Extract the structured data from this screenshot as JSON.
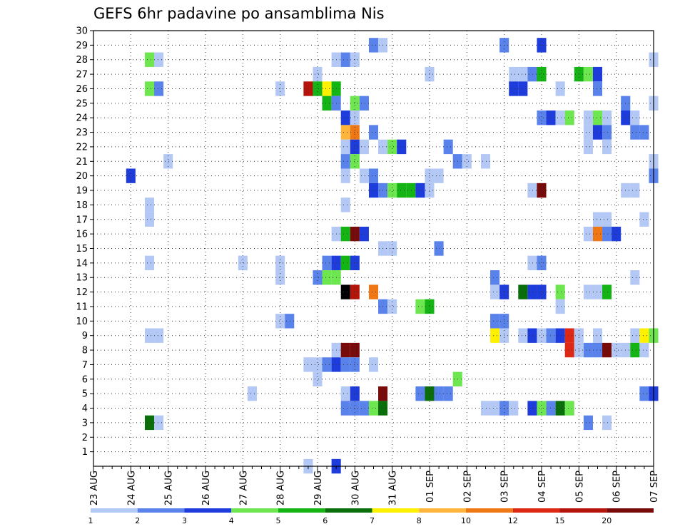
{
  "chart_data": {
    "type": "heatmap",
    "title": "GEFS 6hr padavine po ansamblima Nis",
    "xlabel": "",
    "ylabel": "",
    "x_ticks": [
      "23 AUG",
      "24 AUG",
      "25 AUG",
      "26 AUG",
      "27 AUG",
      "28 AUG",
      "29 AUG",
      "30 AUG",
      "31 AUG",
      "01 SEP",
      "02 SEP",
      "03 SEP",
      "04 SEP",
      "05 SEP",
      "06 SEP",
      "07 SEP"
    ],
    "y_ticks": [
      "1",
      "2",
      "3",
      "4",
      "5",
      "6",
      "7",
      "8",
      "9",
      "10",
      "11",
      "12",
      "13",
      "14",
      "15",
      "16",
      "17",
      "18",
      "19",
      "20",
      "21",
      "22",
      "23",
      "24",
      "25",
      "26",
      "27",
      "28",
      "29",
      "30"
    ],
    "xlim_steps": [
      0,
      60
    ],
    "ylim": [
      0,
      30
    ],
    "grid": true,
    "legend_placement": "bottom",
    "legend": {
      "labels": [
        "1",
        "2",
        "3",
        "4",
        "5",
        "6",
        "7",
        "8",
        "10",
        "12",
        "15",
        "20"
      ],
      "colors": [
        "#b4c8f5",
        "#5a82eb",
        "#1e3cdc",
        "#6ee650",
        "#14b414",
        "#0a6e0a",
        "#fff000",
        "#ffb43c",
        "#f07814",
        "#dc2814",
        "#b4140a",
        "#780a0a"
      ]
    },
    "cells": [
      {
        "member": 29,
        "step": 30,
        "cls": 2
      },
      {
        "member": 29,
        "step": 31,
        "cls": 1
      },
      {
        "member": 29,
        "step": 44,
        "cls": 2
      },
      {
        "member": 29,
        "step": 48,
        "cls": 3
      },
      {
        "member": 28,
        "step": 6,
        "cls": 4
      },
      {
        "member": 28,
        "step": 7,
        "cls": 1
      },
      {
        "member": 28,
        "step": 26,
        "cls": 1
      },
      {
        "member": 28,
        "step": 27,
        "cls": 2
      },
      {
        "member": 28,
        "step": 28,
        "cls": 1
      },
      {
        "member": 28,
        "step": 60,
        "cls": 1
      },
      {
        "member": 27,
        "step": 24,
        "cls": 1
      },
      {
        "member": 27,
        "step": 36,
        "cls": 1
      },
      {
        "member": 27,
        "step": 45,
        "cls": 1
      },
      {
        "member": 27,
        "step": 46,
        "cls": 1
      },
      {
        "member": 27,
        "step": 47,
        "cls": 2
      },
      {
        "member": 27,
        "step": 48,
        "cls": 5
      },
      {
        "member": 27,
        "step": 52,
        "cls": 5
      },
      {
        "member": 27,
        "step": 53,
        "cls": 4
      },
      {
        "member": 27,
        "step": 54,
        "cls": 3
      },
      {
        "member": 26,
        "step": 6,
        "cls": 4
      },
      {
        "member": 26,
        "step": 7,
        "cls": 2
      },
      {
        "member": 26,
        "step": 20,
        "cls": 1
      },
      {
        "member": 26,
        "step": 23,
        "cls": 11
      },
      {
        "member": 26,
        "step": 24,
        "cls": 5
      },
      {
        "member": 26,
        "step": 25,
        "cls": 7
      },
      {
        "member": 26,
        "step": 26,
        "cls": 5
      },
      {
        "member": 26,
        "step": 45,
        "cls": 3
      },
      {
        "member": 26,
        "step": 46,
        "cls": 3
      },
      {
        "member": 26,
        "step": 50,
        "cls": 1
      },
      {
        "member": 26,
        "step": 54,
        "cls": 2
      },
      {
        "member": 25,
        "step": 25,
        "cls": 5
      },
      {
        "member": 25,
        "step": 26,
        "cls": 2
      },
      {
        "member": 25,
        "step": 28,
        "cls": 4
      },
      {
        "member": 25,
        "step": 29,
        "cls": 2
      },
      {
        "member": 25,
        "step": 57,
        "cls": 2
      },
      {
        "member": 25,
        "step": 60,
        "cls": 1
      },
      {
        "member": 24,
        "step": 27,
        "cls": 3
      },
      {
        "member": 24,
        "step": 28,
        "cls": 1
      },
      {
        "member": 24,
        "step": 48,
        "cls": 2
      },
      {
        "member": 24,
        "step": 49,
        "cls": 3
      },
      {
        "member": 24,
        "step": 50,
        "cls": 1
      },
      {
        "member": 24,
        "step": 51,
        "cls": 4
      },
      {
        "member": 24,
        "step": 53,
        "cls": 1
      },
      {
        "member": 24,
        "step": 54,
        "cls": 4
      },
      {
        "member": 24,
        "step": 55,
        "cls": 1
      },
      {
        "member": 24,
        "step": 57,
        "cls": 3
      },
      {
        "member": 24,
        "step": 58,
        "cls": 1
      },
      {
        "member": 23,
        "step": 27,
        "cls": 8
      },
      {
        "member": 23,
        "step": 28,
        "cls": 9
      },
      {
        "member": 23,
        "step": 30,
        "cls": 2
      },
      {
        "member": 23,
        "step": 53,
        "cls": 1
      },
      {
        "member": 23,
        "step": 54,
        "cls": 3
      },
      {
        "member": 23,
        "step": 55,
        "cls": 2
      },
      {
        "member": 23,
        "step": 58,
        "cls": 2
      },
      {
        "member": 23,
        "step": 59,
        "cls": 2
      },
      {
        "member": 22,
        "step": 27,
        "cls": 1
      },
      {
        "member": 22,
        "step": 28,
        "cls": 3
      },
      {
        "member": 22,
        "step": 29,
        "cls": 1
      },
      {
        "member": 22,
        "step": 31,
        "cls": 1
      },
      {
        "member": 22,
        "step": 32,
        "cls": 4
      },
      {
        "member": 22,
        "step": 33,
        "cls": 3
      },
      {
        "member": 22,
        "step": 38,
        "cls": 2
      },
      {
        "member": 22,
        "step": 53,
        "cls": 1
      },
      {
        "member": 22,
        "step": 55,
        "cls": 1
      },
      {
        "member": 21,
        "step": 8,
        "cls": 1
      },
      {
        "member": 21,
        "step": 27,
        "cls": 2
      },
      {
        "member": 21,
        "step": 28,
        "cls": 4
      },
      {
        "member": 21,
        "step": 39,
        "cls": 2
      },
      {
        "member": 21,
        "step": 40,
        "cls": 1
      },
      {
        "member": 21,
        "step": 42,
        "cls": 1
      },
      {
        "member": 21,
        "step": 60,
        "cls": 1
      },
      {
        "member": 20,
        "step": 4,
        "cls": 3
      },
      {
        "member": 20,
        "step": 27,
        "cls": 1
      },
      {
        "member": 20,
        "step": 29,
        "cls": 1
      },
      {
        "member": 20,
        "step": 30,
        "cls": 2
      },
      {
        "member": 20,
        "step": 36,
        "cls": 1
      },
      {
        "member": 20,
        "step": 37,
        "cls": 1
      },
      {
        "member": 20,
        "step": 60,
        "cls": 2
      },
      {
        "member": 19,
        "step": 30,
        "cls": 3
      },
      {
        "member": 19,
        "step": 31,
        "cls": 2
      },
      {
        "member": 19,
        "step": 32,
        "cls": 4
      },
      {
        "member": 19,
        "step": 33,
        "cls": 5
      },
      {
        "member": 19,
        "step": 34,
        "cls": 5
      },
      {
        "member": 19,
        "step": 35,
        "cls": 3
      },
      {
        "member": 19,
        "step": 36,
        "cls": 1
      },
      {
        "member": 19,
        "step": 47,
        "cls": 1
      },
      {
        "member": 19,
        "step": 48,
        "cls": 12
      },
      {
        "member": 19,
        "step": 57,
        "cls": 1
      },
      {
        "member": 19,
        "step": 58,
        "cls": 1
      },
      {
        "member": 18,
        "step": 6,
        "cls": 1
      },
      {
        "member": 18,
        "step": 27,
        "cls": 1
      },
      {
        "member": 17,
        "step": 6,
        "cls": 1
      },
      {
        "member": 17,
        "step": 54,
        "cls": 1
      },
      {
        "member": 17,
        "step": 55,
        "cls": 1
      },
      {
        "member": 17,
        "step": 59,
        "cls": 1
      },
      {
        "member": 16,
        "step": 26,
        "cls": 1
      },
      {
        "member": 16,
        "step": 27,
        "cls": 5
      },
      {
        "member": 16,
        "step": 28,
        "cls": 12
      },
      {
        "member": 16,
        "step": 29,
        "cls": 3
      },
      {
        "member": 16,
        "step": 53,
        "cls": 1
      },
      {
        "member": 16,
        "step": 54,
        "cls": 9
      },
      {
        "member": 16,
        "step": 55,
        "cls": 2
      },
      {
        "member": 16,
        "step": 56,
        "cls": 3
      },
      {
        "member": 15,
        "step": 31,
        "cls": 1
      },
      {
        "member": 15,
        "step": 32,
        "cls": 1
      },
      {
        "member": 15,
        "step": 37,
        "cls": 2
      },
      {
        "member": 14,
        "step": 6,
        "cls": 1
      },
      {
        "member": 14,
        "step": 16,
        "cls": 1
      },
      {
        "member": 14,
        "step": 20,
        "cls": 1
      },
      {
        "member": 14,
        "step": 25,
        "cls": 2
      },
      {
        "member": 14,
        "step": 26,
        "cls": 3
      },
      {
        "member": 14,
        "step": 27,
        "cls": 5
      },
      {
        "member": 14,
        "step": 28,
        "cls": 3
      },
      {
        "member": 14,
        "step": 47,
        "cls": 1
      },
      {
        "member": 14,
        "step": 48,
        "cls": 2
      },
      {
        "member": 13,
        "step": 20,
        "cls": 1
      },
      {
        "member": 13,
        "step": 24,
        "cls": 2
      },
      {
        "member": 13,
        "step": 25,
        "cls": 4
      },
      {
        "member": 13,
        "step": 26,
        "cls": 4
      },
      {
        "member": 13,
        "step": 43,
        "cls": 2
      },
      {
        "member": 13,
        "step": 58,
        "cls": 1
      },
      {
        "member": 12,
        "step": 27,
        "cls": 13
      },
      {
        "member": 12,
        "step": 28,
        "cls": 11
      },
      {
        "member": 12,
        "step": 30,
        "cls": 9
      },
      {
        "member": 12,
        "step": 43,
        "cls": 1
      },
      {
        "member": 12,
        "step": 44,
        "cls": 3
      },
      {
        "member": 12,
        "step": 46,
        "cls": 6
      },
      {
        "member": 12,
        "step": 47,
        "cls": 3
      },
      {
        "member": 12,
        "step": 48,
        "cls": 3
      },
      {
        "member": 12,
        "step": 50,
        "cls": 4
      },
      {
        "member": 12,
        "step": 53,
        "cls": 1
      },
      {
        "member": 12,
        "step": 54,
        "cls": 1
      },
      {
        "member": 12,
        "step": 55,
        "cls": 5
      },
      {
        "member": 11,
        "step": 31,
        "cls": 2
      },
      {
        "member": 11,
        "step": 32,
        "cls": 1
      },
      {
        "member": 11,
        "step": 35,
        "cls": 4
      },
      {
        "member": 11,
        "step": 36,
        "cls": 5
      },
      {
        "member": 11,
        "step": 50,
        "cls": 1
      },
      {
        "member": 10,
        "step": 20,
        "cls": 1
      },
      {
        "member": 10,
        "step": 21,
        "cls": 2
      },
      {
        "member": 10,
        "step": 43,
        "cls": 2
      },
      {
        "member": 10,
        "step": 44,
        "cls": 2
      },
      {
        "member": 9,
        "step": 6,
        "cls": 1
      },
      {
        "member": 9,
        "step": 7,
        "cls": 1
      },
      {
        "member": 9,
        "step": 43,
        "cls": 7
      },
      {
        "member": 9,
        "step": 44,
        "cls": 1
      },
      {
        "member": 9,
        "step": 46,
        "cls": 1
      },
      {
        "member": 9,
        "step": 47,
        "cls": 3
      },
      {
        "member": 9,
        "step": 48,
        "cls": 1
      },
      {
        "member": 9,
        "step": 49,
        "cls": 2
      },
      {
        "member": 9,
        "step": 50,
        "cls": 3
      },
      {
        "member": 9,
        "step": 51,
        "cls": 10
      },
      {
        "member": 9,
        "step": 52,
        "cls": 1
      },
      {
        "member": 9,
        "step": 54,
        "cls": 1
      },
      {
        "member": 9,
        "step": 58,
        "cls": 1
      },
      {
        "member": 9,
        "step": 59,
        "cls": 7
      },
      {
        "member": 9,
        "step": 60,
        "cls": 4
      },
      {
        "member": 8,
        "step": 26,
        "cls": 1
      },
      {
        "member": 8,
        "step": 27,
        "cls": 12
      },
      {
        "member": 8,
        "step": 28,
        "cls": 12
      },
      {
        "member": 8,
        "step": 51,
        "cls": 10
      },
      {
        "member": 8,
        "step": 52,
        "cls": 1
      },
      {
        "member": 8,
        "step": 53,
        "cls": 2
      },
      {
        "member": 8,
        "step": 54,
        "cls": 2
      },
      {
        "member": 8,
        "step": 55,
        "cls": 12
      },
      {
        "member": 8,
        "step": 56,
        "cls": 1
      },
      {
        "member": 8,
        "step": 57,
        "cls": 1
      },
      {
        "member": 8,
        "step": 58,
        "cls": 5
      },
      {
        "member": 8,
        "step": 59,
        "cls": 1
      },
      {
        "member": 7,
        "step": 23,
        "cls": 1
      },
      {
        "member": 7,
        "step": 24,
        "cls": 1
      },
      {
        "member": 7,
        "step": 25,
        "cls": 2
      },
      {
        "member": 7,
        "step": 26,
        "cls": 3
      },
      {
        "member": 7,
        "step": 27,
        "cls": 2
      },
      {
        "member": 7,
        "step": 28,
        "cls": 2
      },
      {
        "member": 7,
        "step": 30,
        "cls": 1
      },
      {
        "member": 6,
        "step": 24,
        "cls": 1
      },
      {
        "member": 6,
        "step": 39,
        "cls": 4
      },
      {
        "member": 5,
        "step": 17,
        "cls": 1
      },
      {
        "member": 5,
        "step": 27,
        "cls": 1
      },
      {
        "member": 5,
        "step": 28,
        "cls": 3
      },
      {
        "member": 5,
        "step": 31,
        "cls": 12
      },
      {
        "member": 5,
        "step": 35,
        "cls": 2
      },
      {
        "member": 5,
        "step": 36,
        "cls": 6
      },
      {
        "member": 5,
        "step": 37,
        "cls": 2
      },
      {
        "member": 5,
        "step": 38,
        "cls": 2
      },
      {
        "member": 5,
        "step": 59,
        "cls": 2
      },
      {
        "member": 5,
        "step": 60,
        "cls": 3
      },
      {
        "member": 4,
        "step": 27,
        "cls": 2
      },
      {
        "member": 4,
        "step": 28,
        "cls": 2
      },
      {
        "member": 4,
        "step": 29,
        "cls": 2
      },
      {
        "member": 4,
        "step": 30,
        "cls": 4
      },
      {
        "member": 4,
        "step": 31,
        "cls": 6
      },
      {
        "member": 4,
        "step": 42,
        "cls": 1
      },
      {
        "member": 4,
        "step": 43,
        "cls": 1
      },
      {
        "member": 4,
        "step": 44,
        "cls": 2
      },
      {
        "member": 4,
        "step": 45,
        "cls": 1
      },
      {
        "member": 4,
        "step": 47,
        "cls": 3
      },
      {
        "member": 4,
        "step": 48,
        "cls": 4
      },
      {
        "member": 4,
        "step": 49,
        "cls": 2
      },
      {
        "member": 4,
        "step": 50,
        "cls": 6
      },
      {
        "member": 4,
        "step": 51,
        "cls": 4
      },
      {
        "member": 3,
        "step": 6,
        "cls": 6
      },
      {
        "member": 3,
        "step": 7,
        "cls": 1
      },
      {
        "member": 3,
        "step": 53,
        "cls": 2
      },
      {
        "member": 3,
        "step": 55,
        "cls": 1
      },
      {
        "member": 0,
        "step": 23,
        "cls": 1
      },
      {
        "member": 0,
        "step": 26,
        "cls": 3
      }
    ]
  }
}
